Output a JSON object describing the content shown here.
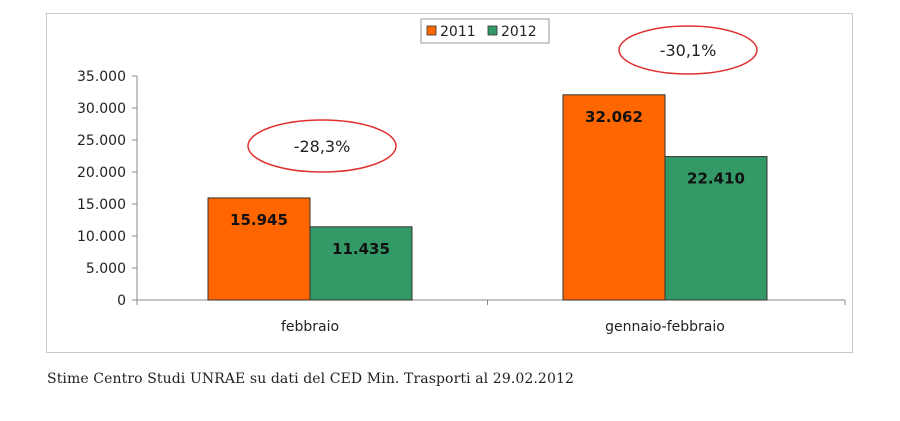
{
  "chart_data": {
    "type": "bar",
    "categories": [
      "febbraio",
      "gennaio-febbraio"
    ],
    "series": [
      {
        "name": "2011",
        "values": [
          15945,
          32062
        ],
        "labels": [
          "15.945",
          "32.062"
        ],
        "color": "#ff6600"
      },
      {
        "name": "2012",
        "values": [
          11435,
          22410
        ],
        "labels": [
          "11.435",
          "22.410"
        ],
        "color": "#339966"
      }
    ],
    "ylim": [
      0,
      35000
    ],
    "yticks": [
      0,
      5000,
      10000,
      15000,
      20000,
      25000,
      30000,
      35000
    ],
    "ytick_labels": [
      "0",
      "5.000",
      "10.000",
      "15.000",
      "20.000",
      "25.000",
      "30.000",
      "35.000"
    ],
    "legend_position": "top-center",
    "grid": false,
    "annotations": [
      "-28,3%",
      "-30,1%"
    ],
    "annotation_color": "#e03030"
  },
  "source_note": "Stime Centro Studi UNRAE su dati del CED Min. Trasporti al 29.02.2012"
}
